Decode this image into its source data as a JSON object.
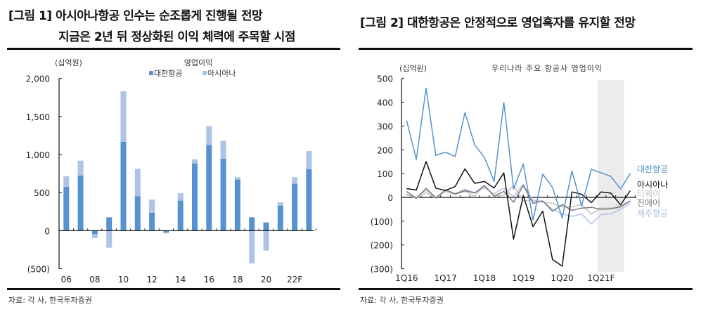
{
  "figure1": {
    "title_line1": "[그림 1] 아시아나항공 인수는 순조롭게 진행될 전망",
    "title_line2": "지금은 2년 뒤 정상화된 이익 체력에 주목할 시점",
    "source": "자료: 각 사, 한국투자증권"
  },
  "figure2": {
    "title": "[그림 2] 대한항공은 안정적으로 영업흑자를 유지할 전망",
    "source": "자료: 각 사, 한국투자증권"
  },
  "chart_data": [
    {
      "type": "bar",
      "stacked": true,
      "title": "영업이익",
      "unit": "(십억원)",
      "categories": [
        "06",
        "07",
        "08",
        "09",
        "10",
        "11",
        "12",
        "13",
        "14",
        "15",
        "16",
        "17",
        "18",
        "19",
        "20",
        "21",
        "22F",
        "23F"
      ],
      "tick_labels": [
        "06",
        "08",
        "10",
        "12",
        "14",
        "16",
        "18",
        "20",
        "22F"
      ],
      "ylim": [
        -500,
        2000
      ],
      "yticks": [
        2000,
        1500,
        1000,
        500,
        0,
        -500
      ],
      "ytick_labels": [
        "2,000",
        "1,500",
        "1,000",
        "500",
        "0",
        "(500)"
      ],
      "legend_position": "top-center",
      "series": [
        {
          "name": "대한항공",
          "color": "#5592cf",
          "values": [
            575,
            723,
            -46,
            175,
            1166,
            452,
            234,
            -22,
            394,
            883,
            1126,
            945,
            671,
            175,
            108,
            329,
            615,
            806
          ]
        },
        {
          "name": "아시아나",
          "color": "#aec3e6",
          "values": [
            139,
            197,
            -52,
            -225,
            665,
            360,
            175,
            -15,
            98,
            55,
            249,
            237,
            31,
            -431,
            -262,
            43,
            87,
            240
          ]
        }
      ]
    },
    {
      "type": "line",
      "title": "우리나라 주요 항공사 영업이익",
      "unit": "(십억원)",
      "x": [
        "1Q16",
        "2Q16",
        "3Q16",
        "4Q16",
        "1Q17",
        "2Q17",
        "3Q17",
        "4Q17",
        "1Q18",
        "2Q18",
        "3Q18",
        "4Q18",
        "1Q19",
        "2Q19",
        "3Q19",
        "4Q19",
        "1Q20",
        "2Q20",
        "3Q20",
        "4Q20",
        "1Q21F",
        "2Q21F",
        "3Q21F",
        "4Q21F"
      ],
      "tick_labels": [
        "1Q16",
        "1Q17",
        "1Q18",
        "1Q19",
        "1Q20",
        "1Q21F"
      ],
      "ylim": [
        -300,
        500
      ],
      "yticks": [
        500,
        400,
        300,
        200,
        100,
        0,
        -100,
        -200,
        -300
      ],
      "ytick_labels": [
        "500",
        "400",
        "300",
        "200",
        "100",
        "0",
        "(100)",
        "(200)",
        "(300)"
      ],
      "shaded_range": [
        "1Q21F",
        "3Q21F"
      ],
      "shade_color": "#ececec",
      "legend_position": "right",
      "series": [
        {
          "name": "대한항공",
          "color": "#5592cf",
          "values": [
            323,
            160,
            459,
            177,
            190,
            172,
            357,
            221,
            168,
            67,
            400,
            35,
            141,
            -95,
            98,
            42,
            -86,
            111,
            -36,
            118,
            103,
            89,
            35,
            101
          ]
        },
        {
          "name": "아시아나",
          "color": "#111111",
          "values": [
            37,
            31,
            151,
            39,
            29,
            46,
            120,
            59,
            67,
            40,
            103,
            -176,
            8,
            -123,
            -58,
            -261,
            -289,
            23,
            13,
            -22,
            23,
            18,
            -31,
            28
          ]
        },
        {
          "name": "티웨이",
          "color": "#c4c4c4",
          "values": [
            15,
            -5,
            20,
            -3,
            25,
            12,
            25,
            5,
            50,
            5,
            10,
            50,
            -15,
            -10,
            -20,
            -25,
            -40,
            -40,
            -30,
            -70,
            -45,
            -45,
            -35,
            -15
          ]
        },
        {
          "name": "진에어",
          "color": "#7a7a7a",
          "values": [
            25,
            -3,
            38,
            -2,
            32,
            15,
            28,
            18,
            50,
            5,
            25,
            -20,
            50,
            -25,
            -15,
            -58,
            -30,
            -55,
            -45,
            -42,
            -50,
            -48,
            -40,
            -15
          ]
        },
        {
          "name": "제주항공",
          "color": "#aec3e6",
          "values": [
            10,
            0,
            30,
            0,
            25,
            15,
            35,
            20,
            40,
            15,
            38,
            3,
            55,
            -15,
            -15,
            -50,
            -70,
            -80,
            -70,
            -112,
            -72,
            -70,
            -50,
            -25
          ]
        }
      ]
    }
  ]
}
